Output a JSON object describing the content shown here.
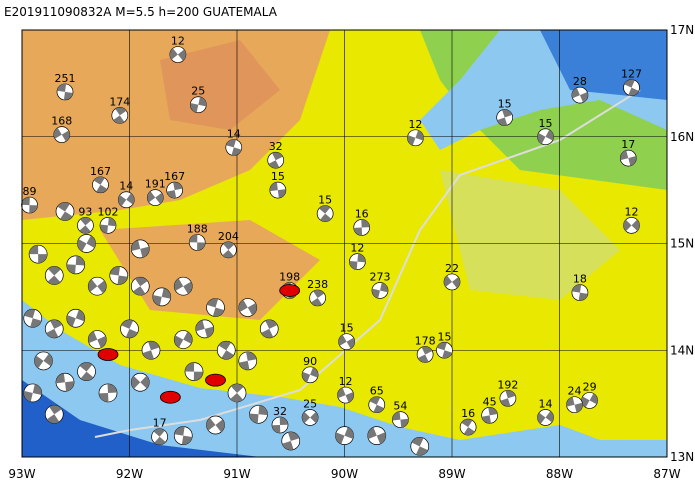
{
  "map": {
    "title": "E201911090832A  M=5.5  h=200  GUATEMALA",
    "xlim": [
      -93,
      -87
    ],
    "ylim": [
      13,
      17
    ],
    "xticks": [
      {
        "value": -93,
        "label": "93W"
      },
      {
        "value": -92,
        "label": "92W"
      },
      {
        "value": -91,
        "label": "91W"
      },
      {
        "value": -90,
        "label": "90W"
      },
      {
        "value": -89,
        "label": "89W"
      },
      {
        "value": -88,
        "label": "88W"
      },
      {
        "value": -87,
        "label": "87W"
      }
    ],
    "yticks": [
      {
        "value": 13,
        "label": "13N"
      },
      {
        "value": 14,
        "label": "14N"
      },
      {
        "value": 15,
        "label": "15N"
      },
      {
        "value": 16,
        "label": "16N"
      },
      {
        "value": 17,
        "label": "17N"
      }
    ],
    "events": [
      {
        "lon": -91.55,
        "lat": 16.77,
        "depth": 12
      },
      {
        "lon": -92.6,
        "lat": 16.42,
        "depth": 251
      },
      {
        "lon": -92.09,
        "lat": 16.2,
        "depth": 174
      },
      {
        "lon": -91.36,
        "lat": 16.3,
        "depth": 25
      },
      {
        "lon": -92.63,
        "lat": 16.02,
        "depth": 168
      },
      {
        "lon": -91.03,
        "lat": 15.9,
        "depth": 14
      },
      {
        "lon": -90.64,
        "lat": 15.78,
        "depth": 32
      },
      {
        "lon": -89.34,
        "lat": 15.99,
        "depth": 12
      },
      {
        "lon": -87.81,
        "lat": 16.39,
        "depth": 28
      },
      {
        "lon": -87.33,
        "lat": 16.46,
        "depth": 127
      },
      {
        "lon": -88.51,
        "lat": 16.18,
        "depth": 15
      },
      {
        "lon": -88.13,
        "lat": 16.0,
        "depth": 15
      },
      {
        "lon": -87.36,
        "lat": 15.8,
        "depth": 17
      },
      {
        "lon": -92.27,
        "lat": 15.55,
        "depth": 167
      },
      {
        "lon": -91.58,
        "lat": 15.5,
        "depth": 167
      },
      {
        "lon": -92.03,
        "lat": 15.41,
        "depth": 14
      },
      {
        "lon": -90.62,
        "lat": 15.5,
        "depth": 15
      },
      {
        "lon": -90.18,
        "lat": 15.28,
        "depth": 15
      },
      {
        "lon": -89.84,
        "lat": 15.15,
        "depth": 16
      },
      {
        "lon": -87.33,
        "lat": 15.17,
        "depth": 12
      },
      {
        "lon": -91.37,
        "lat": 15.01,
        "depth": 188
      },
      {
        "lon": -91.08,
        "lat": 14.94,
        "depth": 204
      },
      {
        "lon": -89.88,
        "lat": 14.83,
        "depth": 12
      },
      {
        "lon": -89.0,
        "lat": 14.64,
        "depth": 22
      },
      {
        "lon": -87.81,
        "lat": 14.54,
        "depth": 18
      },
      {
        "lon": -90.25,
        "lat": 14.49,
        "depth": 238
      },
      {
        "lon": -89.67,
        "lat": 14.56,
        "depth": 273
      },
      {
        "lon": -89.98,
        "lat": 14.08,
        "depth": 15
      },
      {
        "lon": -89.07,
        "lat": 14.0,
        "depth": 15
      },
      {
        "lon": -89.25,
        "lat": 13.96,
        "depth": 178
      },
      {
        "lon": -90.32,
        "lat": 13.77,
        "depth": 90
      },
      {
        "lon": -89.99,
        "lat": 13.58,
        "depth": 12
      },
      {
        "lon": -89.7,
        "lat": 13.49,
        "depth": 65
      },
      {
        "lon": -88.48,
        "lat": 13.55,
        "depth": 192
      },
      {
        "lon": -87.72,
        "lat": 13.53,
        "depth": 29
      },
      {
        "lon": -87.86,
        "lat": 13.49,
        "depth": 24
      },
      {
        "lon": -88.85,
        "lat": 13.28,
        "depth": 16
      },
      {
        "lon": -88.65,
        "lat": 13.39,
        "depth": 45
      },
      {
        "lon": -88.13,
        "lat": 13.37,
        "depth": 14
      },
      {
        "lon": -89.48,
        "lat": 13.35,
        "depth": 54
      },
      {
        "lon": -91.72,
        "lat": 13.19,
        "depth": 17
      },
      {
        "lon": -90.6,
        "lat": 13.3,
        "depth": 32
      },
      {
        "lon": -90.32,
        "lat": 13.37,
        "depth": 25
      },
      {
        "lon": -92.93,
        "lat": 15.36,
        "depth": 89
      },
      {
        "lon": -92.41,
        "lat": 15.17,
        "depth": 93
      },
      {
        "lon": -92.2,
        "lat": 15.17,
        "depth": 102
      },
      {
        "lon": -91.76,
        "lat": 15.43,
        "depth": 191
      },
      {
        "lon": -90.51,
        "lat": 14.56,
        "depth": 198
      }
    ],
    "other_events": [
      [
        -92.85,
        14.9
      ],
      [
        -92.7,
        14.7
      ],
      [
        -92.5,
        14.8
      ],
      [
        -92.3,
        14.6
      ],
      [
        -92.1,
        14.7
      ],
      [
        -91.9,
        14.6
      ],
      [
        -91.7,
        14.5
      ],
      [
        -91.5,
        14.6
      ],
      [
        -92.9,
        14.3
      ],
      [
        -92.7,
        14.2
      ],
      [
        -92.5,
        14.3
      ],
      [
        -92.3,
        14.1
      ],
      [
        -92.0,
        14.2
      ],
      [
        -91.8,
        14.0
      ],
      [
        -91.5,
        14.1
      ],
      [
        -91.3,
        14.2
      ],
      [
        -91.1,
        14.0
      ],
      [
        -90.9,
        13.9
      ],
      [
        -92.8,
        13.9
      ],
      [
        -92.6,
        13.7
      ],
      [
        -92.4,
        13.8
      ],
      [
        -92.2,
        13.6
      ],
      [
        -91.9,
        13.7
      ],
      [
        -91.4,
        13.8
      ],
      [
        -91.0,
        13.6
      ],
      [
        -90.8,
        13.4
      ],
      [
        -91.2,
        13.3
      ],
      [
        -91.5,
        13.2
      ],
      [
        -92.7,
        13.4
      ],
      [
        -92.9,
        13.6
      ],
      [
        -90.9,
        14.4
      ],
      [
        -91.2,
        14.4
      ],
      [
        -90.7,
        14.2
      ],
      [
        -90.0,
        13.2
      ],
      [
        -89.7,
        13.2
      ],
      [
        -89.3,
        13.1
      ],
      [
        -90.5,
        13.15
      ],
      [
        -92.4,
        15.0
      ],
      [
        -91.9,
        14.95
      ],
      [
        -92.6,
        15.3
      ]
    ],
    "main_events": [
      [
        -92.2,
        13.96
      ],
      [
        -91.2,
        13.72
      ],
      [
        -91.62,
        13.56
      ],
      [
        -90.51,
        14.56
      ]
    ]
  }
}
